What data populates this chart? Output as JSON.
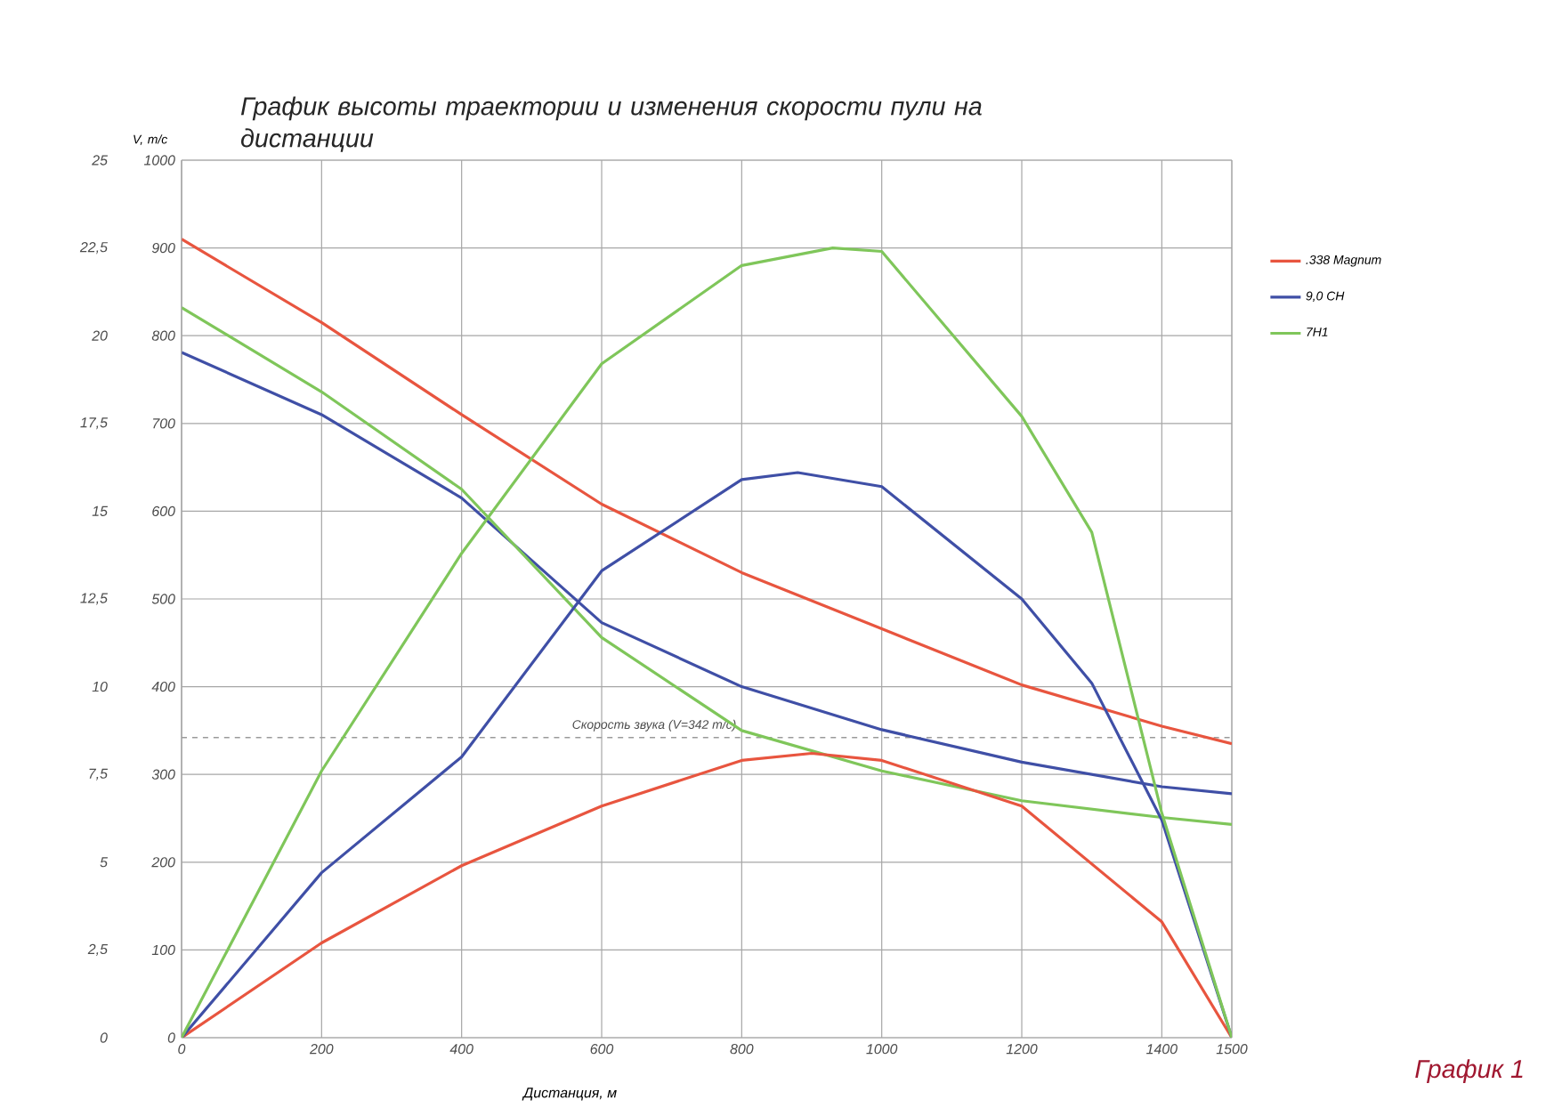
{
  "chart_data": {
    "type": "line",
    "title": "График высоты траектории и изменения скорости пули на дистанции",
    "xlabel": "Дистанция, м",
    "ylabel": "V, m/c",
    "xlim": [
      0,
      1500
    ],
    "xticks": [
      0,
      200,
      400,
      600,
      800,
      1000,
      1200,
      1400,
      1500
    ],
    "ylim": [
      0,
      1000
    ],
    "yticks": [
      0,
      100,
      200,
      300,
      400,
      500,
      600,
      700,
      800,
      900,
      1000
    ],
    "y2lim": [
      0,
      25
    ],
    "y2ticks": [
      0,
      {
        "value": 2.5,
        "label": "2,5"
      },
      5,
      {
        "value": 7.5,
        "label": "7,5"
      },
      10,
      {
        "value": 12.5,
        "label": "12,5"
      },
      15,
      {
        "value": 17.5,
        "label": "17,5"
      },
      20,
      {
        "value": 22.5,
        "label": "22,5"
      },
      25
    ],
    "grid": true,
    "legend": "right",
    "line_style": "solid",
    "ref_lines": [
      {
        "axis": "y",
        "value": 342,
        "label": "Скорость звука (V=342 m/c)",
        "color": "#9a9a9a",
        "line_style": "dashed"
      }
    ],
    "annotations": [
      "График 1"
    ],
    "series": [
      {
        "name": ".338 Magnum",
        "color": "#e8553f",
        "x": [
          0,
          200,
          400,
          600,
          800,
          1000,
          1200,
          1400,
          1500
        ],
        "values": [
          910,
          815,
          710,
          608,
          530,
          466,
          402,
          355,
          335
        ]
      },
      {
        "name": "9,0 СН",
        "color": "#3f4fa6",
        "x": [
          0,
          200,
          400,
          600,
          800,
          1000,
          1200,
          1400,
          1500
        ],
        "values": [
          781,
          710,
          615,
          473,
          400,
          351,
          314,
          286,
          278
        ]
      },
      {
        "name": "7Н1",
        "color": "#7fc65a",
        "x": [
          0,
          200,
          400,
          600,
          800,
          1000,
          1200,
          1400,
          1500
        ],
        "values": [
          832,
          736,
          625,
          456,
          350,
          304,
          270,
          251,
          243
        ]
      },
      {
        "color": "#e8553f",
        "axis": "y2",
        "x": [
          0,
          200,
          400,
          600,
          800,
          900,
          1000,
          1200,
          1400,
          1500
        ],
        "values": [
          0,
          2.7,
          4.9,
          6.6,
          7.9,
          8.1,
          7.9,
          6.6,
          3.3,
          0
        ]
      },
      {
        "color": "#3f4fa6",
        "axis": "y2",
        "x": [
          0,
          200,
          400,
          600,
          800,
          880,
          1000,
          1200,
          1300,
          1400,
          1500
        ],
        "values": [
          0,
          4.7,
          8.0,
          13.3,
          15.9,
          16.1,
          15.7,
          12.5,
          10.1,
          6.2,
          0
        ]
      },
      {
        "color": "#7fc65a",
        "axis": "y2",
        "x": [
          0,
          200,
          400,
          600,
          800,
          930,
          1000,
          1200,
          1300,
          1400,
          1500
        ],
        "values": [
          0,
          7.6,
          13.8,
          19.2,
          22.0,
          22.5,
          22.4,
          17.7,
          14.4,
          6.4,
          0
        ]
      }
    ]
  }
}
